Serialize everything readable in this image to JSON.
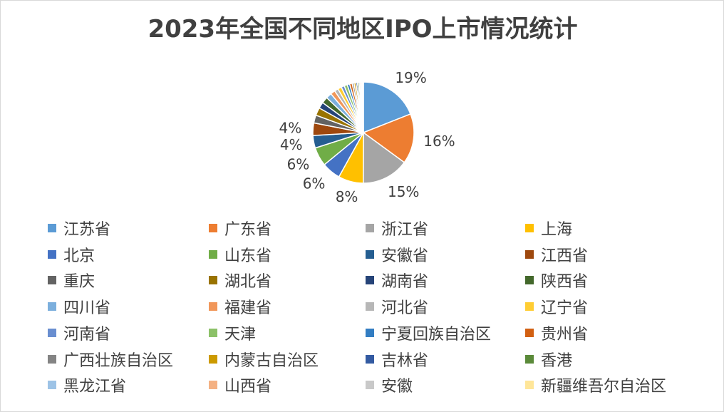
{
  "chart_data": {
    "type": "pie",
    "title": "2023年全国不同地区IPO上市情况统计",
    "legend_position": "bottom",
    "slices": [
      {
        "name": "江苏省",
        "value": 19,
        "color": "#5b9bd5",
        "label": "19%"
      },
      {
        "name": "广东省",
        "value": 16,
        "color": "#ed7d31",
        "label": "16%"
      },
      {
        "name": "浙江省",
        "value": 15,
        "color": "#a5a5a5",
        "label": "15%"
      },
      {
        "name": "上海",
        "value": 8,
        "color": "#ffc000",
        "label": "8%"
      },
      {
        "name": "北京",
        "value": 6,
        "color": "#4472c4",
        "label": "6%"
      },
      {
        "name": "山东省",
        "value": 6,
        "color": "#70ad47",
        "label": "6%"
      },
      {
        "name": "安徽省",
        "value": 4,
        "color": "#255e91",
        "label": "4%"
      },
      {
        "name": "江西省",
        "value": 4,
        "color": "#9e480e",
        "label": "4%"
      },
      {
        "name": "重庆",
        "value": 2.5,
        "color": "#636363",
        "label": ""
      },
      {
        "name": "湖北省",
        "value": 2.5,
        "color": "#997300",
        "label": ""
      },
      {
        "name": "湖南省",
        "value": 2,
        "color": "#264478",
        "label": ""
      },
      {
        "name": "陕西省",
        "value": 2,
        "color": "#43682b",
        "label": ""
      },
      {
        "name": "四川省",
        "value": 1.8,
        "color": "#7cafdd",
        "label": ""
      },
      {
        "name": "福建省",
        "value": 1.5,
        "color": "#f1975a",
        "label": ""
      },
      {
        "name": "河北省",
        "value": 1.2,
        "color": "#b7b7b7",
        "label": ""
      },
      {
        "name": "辽宁省",
        "value": 1.2,
        "color": "#ffcd33",
        "label": ""
      },
      {
        "name": "河南省",
        "value": 1,
        "color": "#698ed0",
        "label": ""
      },
      {
        "name": "天津",
        "value": 1,
        "color": "#8cc168",
        "label": ""
      },
      {
        "name": "宁夏回族自治区",
        "value": 0.8,
        "color": "#327dc2",
        "label": ""
      },
      {
        "name": "贵州省",
        "value": 0.8,
        "color": "#d26012",
        "label": ""
      },
      {
        "name": "广西壮族自治区",
        "value": 0.6,
        "color": "#848484",
        "label": ""
      },
      {
        "name": "内蒙古自治区",
        "value": 0.6,
        "color": "#cc9a00",
        "label": ""
      },
      {
        "name": "吉林省",
        "value": 0.5,
        "color": "#335aa1",
        "label": ""
      },
      {
        "name": "香港",
        "value": 0.5,
        "color": "#5a8a39",
        "label": ""
      },
      {
        "name": "黑龙江省",
        "value": 0.4,
        "color": "#9dc3e6",
        "label": ""
      },
      {
        "name": "山西省",
        "value": 0.4,
        "color": "#f4b183",
        "label": ""
      },
      {
        "name": "安徽",
        "value": 0.3,
        "color": "#c9c9c9",
        "label": ""
      },
      {
        "name": "新疆维吾尔自治区",
        "value": 0.3,
        "color": "#ffe699",
        "label": ""
      }
    ]
  }
}
